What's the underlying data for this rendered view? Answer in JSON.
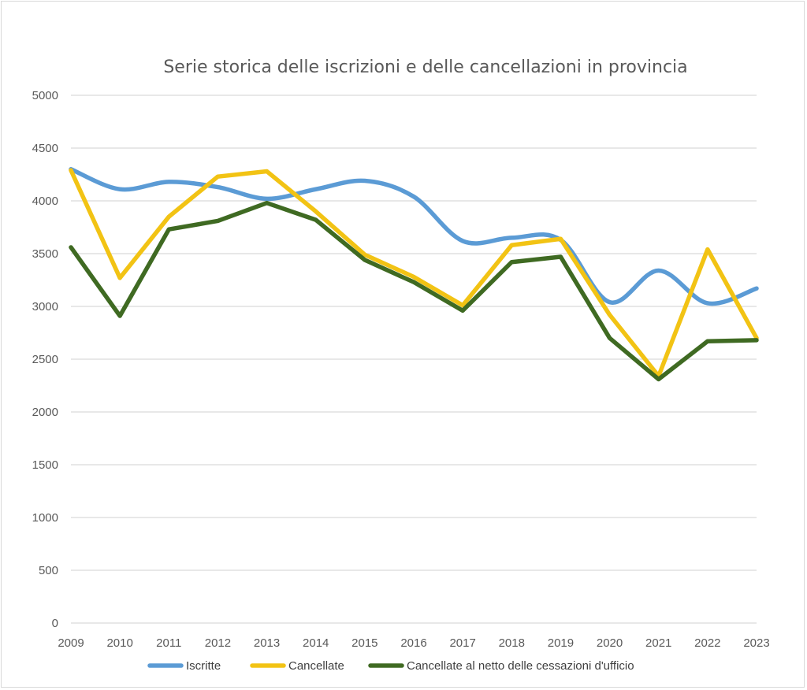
{
  "chart_data": {
    "type": "line",
    "title": "Serie storica delle iscrizioni e delle cancellazioni  in provincia",
    "categories": [
      "2009",
      "2010",
      "2011",
      "2012",
      "2013",
      "2014",
      "2015",
      "2016",
      "2017",
      "2018",
      "2019",
      "2020",
      "2021",
      "2022",
      "2023"
    ],
    "yticks": [
      "0",
      "500",
      "1000",
      "1500",
      "2000",
      "2500",
      "3000",
      "3500",
      "4000",
      "4500",
      "5000"
    ],
    "ylim": [
      0,
      5000
    ],
    "grid": true,
    "legend_position": "bottom",
    "series": [
      {
        "name": "Iscritte",
        "color": "#5b9bd5",
        "smooth": true,
        "values": [
          4300,
          4110,
          4180,
          4130,
          4020,
          4110,
          4190,
          4040,
          3620,
          3650,
          3630,
          3040,
          3340,
          3030,
          3170
        ]
      },
      {
        "name": "Cancellate",
        "color": "#f2c314",
        "smooth": false,
        "values": [
          4290,
          3270,
          3850,
          4230,
          4280,
          3900,
          3490,
          3280,
          3010,
          3580,
          3640,
          2920,
          2340,
          3540,
          2700
        ]
      },
      {
        "name": "Cancellate al netto delle cessazioni d'ufficio",
        "color": "#3f6a22",
        "smooth": false,
        "values": [
          3560,
          2910,
          3730,
          3810,
          3980,
          3820,
          3440,
          3230,
          2960,
          3420,
          3470,
          2700,
          2310,
          2670,
          2680
        ]
      }
    ]
  }
}
